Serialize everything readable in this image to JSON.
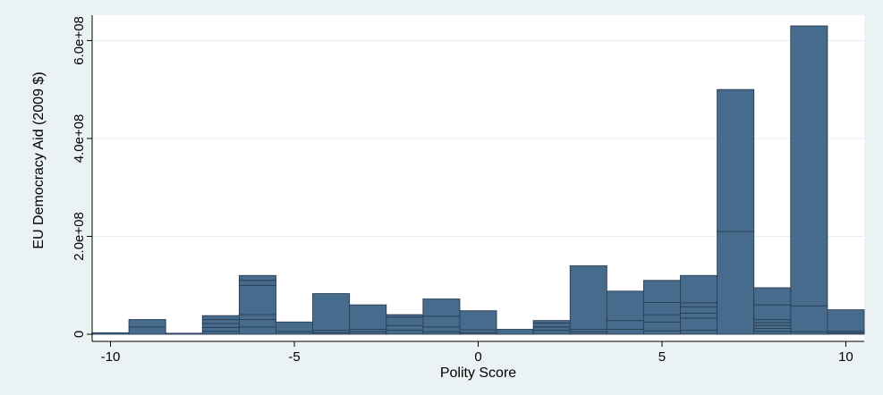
{
  "chart_data": {
    "type": "bar",
    "subtype": "stacked-histogram",
    "title": "",
    "xlabel": "Polity Score",
    "ylabel": "EU Democracy Aid (2009 $)",
    "xlim": [
      -10.5,
      10.5
    ],
    "ylim": [
      0,
      630000000
    ],
    "x_ticks": [
      -10,
      -5,
      0,
      5,
      10
    ],
    "x_tick_labels": [
      "-10",
      "-5",
      "0",
      "5",
      "10"
    ],
    "y_ticks": [
      0,
      200000000,
      400000000,
      600000000
    ],
    "y_tick_labels": [
      "0",
      "2.0e+08",
      "4.0e+08",
      "6.0e+08"
    ],
    "grid": "horizontal",
    "legend": "none",
    "bar_color": "#466b8c",
    "segment_line_color": "#2a3f55",
    "plot_background": "#ffffff",
    "page_background": "#eaf2f3",
    "grid_color": "#e8eef0",
    "bins": [
      {
        "x": -10,
        "total": 3000000,
        "segments": [
          3000000
        ]
      },
      {
        "x": -9,
        "total": 30000000,
        "segments": [
          15000000,
          15000000
        ]
      },
      {
        "x": -8,
        "total": 2000000,
        "segments": [
          2000000
        ]
      },
      {
        "x": -7,
        "total": 38000000,
        "segments": [
          6000000,
          8000000,
          8000000,
          8000000,
          8000000
        ]
      },
      {
        "x": -6,
        "total": 120000000,
        "segments": [
          15000000,
          15000000,
          10000000,
          60000000,
          10000000,
          10000000
        ]
      },
      {
        "x": -5,
        "total": 25000000,
        "segments": [
          5000000,
          20000000
        ]
      },
      {
        "x": -4,
        "total": 83000000,
        "segments": [
          3000000,
          5000000,
          75000000
        ]
      },
      {
        "x": -3,
        "total": 60000000,
        "segments": [
          5000000,
          5000000,
          50000000
        ]
      },
      {
        "x": -2,
        "total": 40000000,
        "segments": [
          8000000,
          10000000,
          17000000,
          5000000
        ]
      },
      {
        "x": -1,
        "total": 72000000,
        "segments": [
          5000000,
          10000000,
          22000000,
          35000000
        ]
      },
      {
        "x": 0,
        "total": 48000000,
        "segments": [
          3000000,
          6000000,
          39000000
        ]
      },
      {
        "x": 1,
        "total": 10000000,
        "segments": [
          10000000
        ]
      },
      {
        "x": 2,
        "total": 28000000,
        "segments": [
          8000000,
          7000000,
          8000000,
          5000000
        ]
      },
      {
        "x": 3,
        "total": 140000000,
        "segments": [
          5000000,
          5000000,
          130000000
        ]
      },
      {
        "x": 4,
        "total": 88000000,
        "segments": [
          10000000,
          18000000,
          60000000
        ]
      },
      {
        "x": 5,
        "total": 110000000,
        "segments": [
          7000000,
          18000000,
          15000000,
          25000000,
          45000000
        ]
      },
      {
        "x": 6,
        "total": 120000000,
        "segments": [
          8000000,
          25000000,
          10000000,
          13000000,
          8000000,
          56000000
        ]
      },
      {
        "x": 7,
        "total": 500000000,
        "segments": [
          210000000,
          290000000
        ]
      },
      {
        "x": 8,
        "total": 95000000,
        "segments": [
          6000000,
          6000000,
          6000000,
          6000000,
          6000000,
          30000000,
          35000000
        ]
      },
      {
        "x": 9,
        "total": 630000000,
        "segments": [
          5000000,
          53000000,
          572000000
        ]
      },
      {
        "x": 10,
        "total": 50000000,
        "segments": [
          3000000,
          3000000,
          44000000
        ]
      }
    ]
  }
}
